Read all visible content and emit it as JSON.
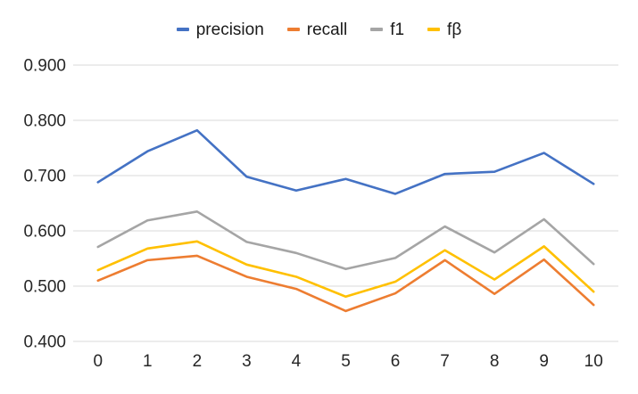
{
  "chart_data": {
    "type": "line",
    "title": "",
    "xlabel": "",
    "ylabel": "",
    "categories": [
      "0",
      "1",
      "2",
      "3",
      "4",
      "5",
      "6",
      "7",
      "8",
      "9",
      "10"
    ],
    "series": [
      {
        "name": "precision",
        "color": "#4472C4",
        "values": [
          0.688,
          0.744,
          0.782,
          0.698,
          0.673,
          0.694,
          0.667,
          0.703,
          0.707,
          0.741,
          0.685
        ]
      },
      {
        "name": "recall",
        "color": "#ED7D31",
        "values": [
          0.51,
          0.547,
          0.555,
          0.517,
          0.495,
          0.455,
          0.487,
          0.547,
          0.486,
          0.548,
          0.466
        ]
      },
      {
        "name": "f1",
        "color": "#A5A5A5",
        "values": [
          0.571,
          0.619,
          0.635,
          0.58,
          0.56,
          0.531,
          0.551,
          0.608,
          0.561,
          0.621,
          0.54
        ]
      },
      {
        "name": "fβ",
        "color": "#FFC000",
        "values": [
          0.529,
          0.568,
          0.581,
          0.539,
          0.517,
          0.481,
          0.508,
          0.565,
          0.512,
          0.572,
          0.49
        ]
      }
    ],
    "ylim": [
      0.4,
      0.9
    ],
    "ytick_labels": [
      "0.400",
      "0.500",
      "0.600",
      "0.700",
      "0.800",
      "0.900"
    ],
    "grid": true,
    "legend_position": "top",
    "colors": {
      "gridline": "#D9D9D9",
      "axis_text": "#262626",
      "background": "#FFFFFF"
    }
  }
}
